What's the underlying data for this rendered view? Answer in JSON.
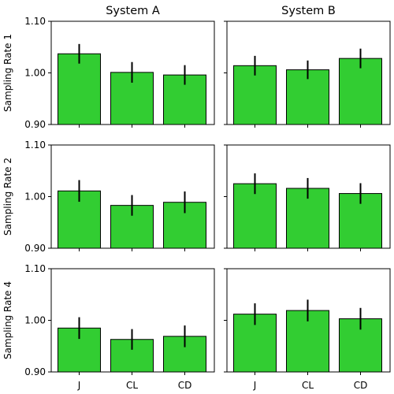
{
  "chart_data": {
    "type": "bar",
    "layout": "grid 3 rows x 2 columns, shared y-axis per row, shared x categories",
    "colors": {
      "bar_fill": "#32cd32",
      "bar_edge": "#000000",
      "error_bar": "#000000"
    },
    "column_titles": [
      "System A",
      "System B"
    ],
    "row_labels": [
      "Sampling Rate 1",
      "Sampling Rate 2",
      "Sampling Rate 4"
    ],
    "categories": [
      "J",
      "CL",
      "CD"
    ],
    "ylim": [
      0.9,
      1.1
    ],
    "yticks": [
      "0.90",
      "1.00",
      "1.10"
    ],
    "grid": false,
    "panels": [
      {
        "row": 0,
        "col": 0,
        "values": [
          1.037,
          1.001,
          0.996
        ],
        "errors": [
          0.019,
          0.02,
          0.019
        ]
      },
      {
        "row": 0,
        "col": 1,
        "values": [
          1.014,
          1.006,
          1.028
        ],
        "errors": [
          0.019,
          0.018,
          0.019
        ]
      },
      {
        "row": 1,
        "col": 0,
        "values": [
          1.011,
          0.983,
          0.989
        ],
        "errors": [
          0.021,
          0.02,
          0.021
        ]
      },
      {
        "row": 1,
        "col": 1,
        "values": [
          1.025,
          1.016,
          1.006
        ],
        "errors": [
          0.02,
          0.02,
          0.02
        ]
      },
      {
        "row": 2,
        "col": 0,
        "values": [
          0.985,
          0.963,
          0.969
        ],
        "errors": [
          0.021,
          0.02,
          0.021
        ]
      },
      {
        "row": 2,
        "col": 1,
        "values": [
          1.012,
          1.019,
          1.003
        ],
        "errors": [
          0.021,
          0.021,
          0.021
        ]
      }
    ]
  }
}
